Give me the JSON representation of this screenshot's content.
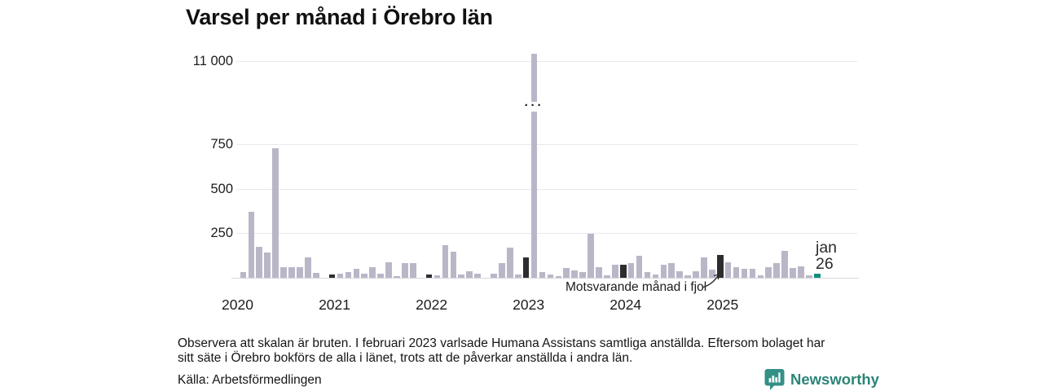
{
  "title": "Varsel per månad i Örebro län",
  "chart_data": {
    "type": "bar",
    "title": "Varsel per månad i Örebro län",
    "frequency": "monthly",
    "start_month": "2020-01",
    "end_month": "2026-01",
    "broken_scale": true,
    "values": [
      0,
      32,
      370,
      175,
      140,
      725,
      58,
      58,
      58,
      116,
      28,
      0,
      20,
      23,
      34,
      50,
      23,
      58,
      23,
      87,
      8,
      81,
      81,
      0,
      20,
      12,
      185,
      145,
      20,
      38,
      23,
      0,
      23,
      84,
      170,
      20,
      115,
      11300,
      31,
      20,
      9,
      54,
      43,
      31,
      245,
      61,
      12,
      74,
      74,
      84,
      123,
      31,
      20,
      73,
      84,
      38,
      12,
      38,
      115,
      46,
      130,
      88,
      61,
      50,
      50,
      15,
      61,
      84,
      153,
      53,
      64,
      15,
      25
    ],
    "highlighted_months": [
      "2021-01",
      "2022-01",
      "2023-01",
      "2024-01",
      "2025-01"
    ],
    "current_month": "2026-01",
    "current_month_label": {
      "line1": "jan",
      "line2": "26"
    },
    "annotation": "Motsvarande månad i fjol",
    "y_axis": {
      "ticks": [
        {
          "label": "11 000",
          "value": 11000
        },
        {
          "label": "750",
          "value": 750
        },
        {
          "label": "500",
          "value": 500
        },
        {
          "label": "250",
          "value": 250
        }
      ]
    },
    "x_axis": {
      "ticks": [
        "2020",
        "2021",
        "2022",
        "2023",
        "2024",
        "2025"
      ]
    },
    "grid": true,
    "legend_position": "none",
    "colors": {
      "bar": "#b9b7c7",
      "highlight": "#2d2d2d",
      "current": "#12917f",
      "gridline": "#e9e9ee",
      "baseline": "#d7d7de"
    }
  },
  "footnote": {
    "lines": [
      "Observera att skalan är bruten. I februari 2023 varlsade Humana Assistans samtliga anställda. Eftersom bolaget har",
      "sitt säte i Örebro bokförs de alla i länet, trots att de påverkar anställda i andra län."
    ]
  },
  "source": "Källa: Arbetsförmedlingen",
  "branding": {
    "name": "Newsworthy",
    "color": "#2b8577"
  }
}
